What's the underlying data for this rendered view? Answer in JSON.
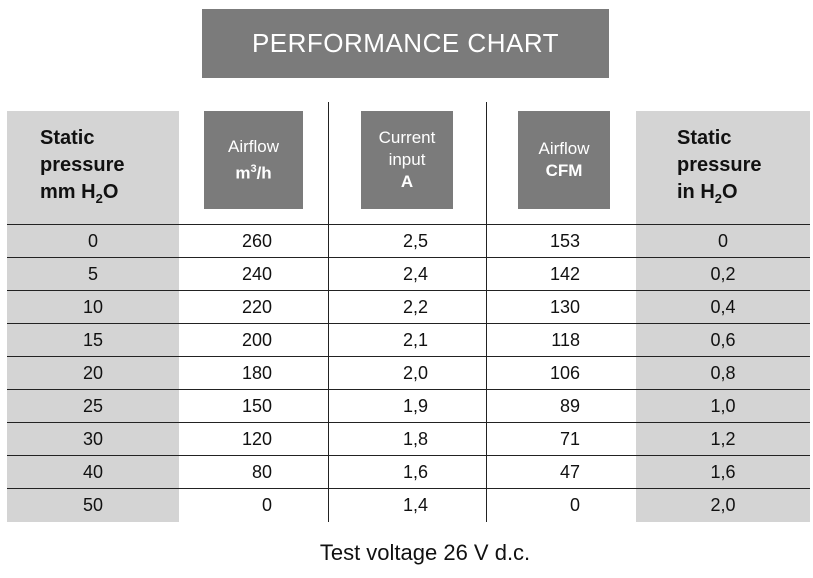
{
  "title": "PERFORMANCE CHART",
  "headers": {
    "static_pressure_mm": {
      "line1": "Static",
      "line2": "pressure",
      "line3_pre": "mm H",
      "line3_sub": "2",
      "line3_post": "O"
    },
    "airflow_m3h": {
      "line1": "Airflow",
      "line2_pre": "m",
      "line2_sup": "3",
      "line2_post": "/h"
    },
    "current_input": {
      "line1": "Current",
      "line2": "input",
      "line3": "A"
    },
    "airflow_cfm": {
      "line1": "Airflow",
      "line2": "CFM"
    },
    "static_pressure_in": {
      "line1": "Static",
      "line2": "pressure",
      "line3_pre": "in H",
      "line3_sub": "2",
      "line3_post": "O"
    }
  },
  "rows": [
    [
      "0",
      "260",
      "2,5",
      "153",
      "0"
    ],
    [
      "5",
      "240",
      "2,4",
      "142",
      "0,2"
    ],
    [
      "10",
      "220",
      "2,2",
      "130",
      "0,4"
    ],
    [
      "15",
      "200",
      "2,1",
      "118",
      "0,6"
    ],
    [
      "20",
      "180",
      "2,0",
      "106",
      "0,8"
    ],
    [
      "25",
      "150",
      "1,9",
      "89",
      "1,0"
    ],
    [
      "30",
      "120",
      "1,8",
      "71",
      "1,2"
    ],
    [
      "40",
      "80",
      "1,6",
      "47",
      "1,6"
    ],
    [
      "50",
      "0",
      "1,4",
      "0",
      "2,0"
    ]
  ],
  "footer": "Test voltage 26 V d.c.",
  "colors": {
    "header_dark": "#7b7b7b",
    "band_light": "#d4d4d4"
  }
}
